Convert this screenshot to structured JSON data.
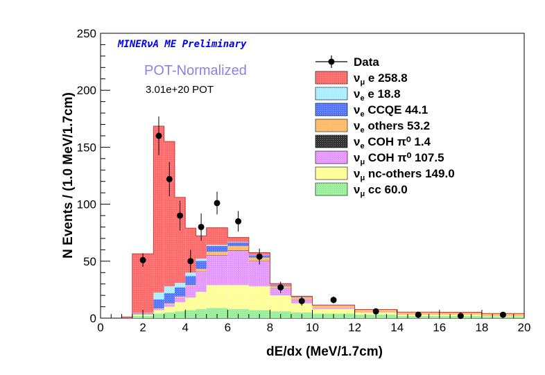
{
  "chart_data": {
    "type": "bar",
    "stacked": true,
    "banner": "MINERνA ME Preliminary",
    "subtitle": "POT-Normalized",
    "pot_label": "3.01e+20 POT",
    "xlabel": "dE/dx (MeV/1.7cm)",
    "ylabel": "N Events / (1.0 MeV/1.7cm)",
    "xlim": [
      0,
      20
    ],
    "ylim": [
      0,
      250
    ],
    "xticks": [
      0,
      2,
      4,
      6,
      8,
      10,
      12,
      14,
      16,
      18,
      20
    ],
    "yticks": [
      0,
      50,
      100,
      150,
      200,
      250
    ],
    "legend_position": "top-right",
    "bin_edges": [
      1.0,
      1.5,
      2.5,
      3.0,
      3.5,
      4.0,
      4.5,
      5.0,
      6.0,
      7.0,
      8.0,
      9.0,
      10.0,
      12.0,
      14.0,
      16.0,
      18.0,
      20.0
    ],
    "series": [
      {
        "name": "cc",
        "prefix": "ν",
        "sub": "μ",
        "value": "60.0",
        "color": "#99ee99",
        "values": [
          0,
          2,
          4,
          5,
          6,
          7,
          8,
          9,
          8,
          7,
          6,
          5,
          4,
          3,
          2,
          2,
          1.5
        ]
      },
      {
        "name": "nc-others",
        "prefix": "ν",
        "sub": "μ",
        "value": "149.0",
        "color": "#ffff99",
        "values": [
          0,
          1,
          3,
          5,
          8,
          11,
          15,
          20,
          21,
          21,
          14,
          8,
          4,
          2,
          1,
          1,
          0.5
        ]
      },
      {
        "name": "COH π⁰",
        "prefix": "ν",
        "sub": "μ",
        "value": "107.5",
        "color": "#e599ff",
        "values": [
          0,
          0,
          1,
          2,
          4,
          10,
          18,
          26,
          30,
          22,
          6,
          3,
          1,
          0.5,
          0.3,
          0.2,
          0.1
        ]
      },
      {
        "name": "COH π⁰",
        "prefix": "ν",
        "sub": "e",
        "value": "1.4",
        "color": "#333333",
        "values": [
          0,
          0,
          0,
          0,
          0,
          0,
          0.2,
          0.3,
          0.3,
          0.2,
          0.1,
          0.1,
          0,
          0,
          0,
          0,
          0
        ]
      },
      {
        "name": "others",
        "prefix": "ν",
        "sub": "e",
        "value": "53.2",
        "color": "#ffbb66",
        "values": [
          0,
          0.5,
          0.5,
          1,
          1,
          1,
          2,
          3,
          4,
          3,
          2,
          2,
          2,
          2,
          2,
          2,
          2
        ]
      },
      {
        "name": "CCQE",
        "prefix": "ν",
        "sub": "e",
        "value": "44.1",
        "color": "#5577ff",
        "values": [
          0,
          0.5,
          8,
          9,
          8,
          8,
          7,
          5,
          3,
          2,
          1,
          0.5,
          0.2,
          0.1,
          0,
          0,
          0
        ]
      },
      {
        "name": "e",
        "prefix": "ν",
        "sub": "e",
        "value": "18.8",
        "color": "#aaeeff",
        "values": [
          0,
          0.5,
          6,
          6,
          4,
          3,
          2,
          1,
          0.5,
          0.3,
          0.2,
          0.1,
          0,
          0,
          0,
          0,
          0
        ]
      },
      {
        "name": "e",
        "prefix": "ν",
        "sub": "μ",
        "value": "258.8",
        "color": "#ff6b6b",
        "values": [
          1,
          52,
          146,
          127,
          75,
          39,
          20,
          15,
          4,
          2,
          1,
          0.5,
          0.3,
          0,
          0,
          0,
          0
        ]
      }
    ],
    "data_points": {
      "name": "Data",
      "x": [
        2.0,
        2.75,
        3.25,
        3.75,
        4.25,
        4.75,
        5.5,
        6.5,
        7.5,
        8.5,
        9.5,
        11,
        13,
        15,
        17,
        19
      ],
      "y": [
        51,
        160,
        122,
        90,
        50,
        80,
        101,
        85,
        54,
        27,
        15,
        16,
        6,
        3,
        2,
        3
      ],
      "err": [
        6,
        17,
        15,
        13,
        10,
        12,
        10,
        9,
        7,
        5,
        4,
        3,
        2,
        1.5,
        1.2,
        1.5
      ]
    }
  }
}
